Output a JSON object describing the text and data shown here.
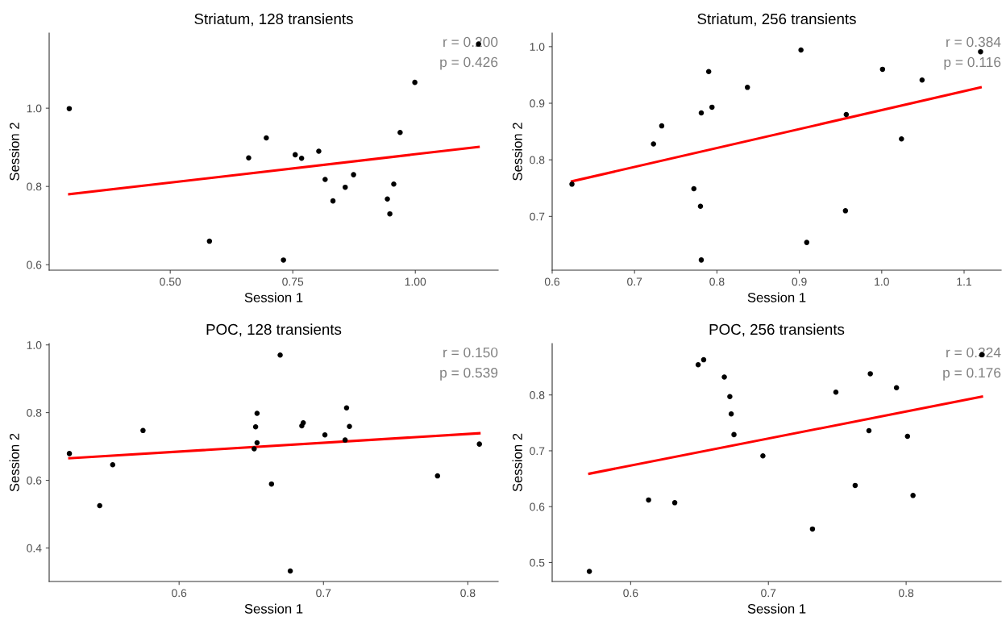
{
  "chart_data": [
    {
      "type": "scatter",
      "title": "Striatum, 128 transients",
      "xlabel": "Session 1",
      "ylabel": "Session 2",
      "grid": false,
      "xlim": [
        0.253,
        1.169
      ],
      "ylim": [
        0.586,
        1.192
      ],
      "xticks": [
        {
          "value": 0.5,
          "label": "0.50"
        },
        {
          "value": 0.75,
          "label": "0.75"
        },
        {
          "value": 1.0,
          "label": "1.00"
        }
      ],
      "yticks": [
        {
          "value": 0.6,
          "label": "0.6"
        },
        {
          "value": 0.8,
          "label": "0.8"
        },
        {
          "value": 1.0,
          "label": "1.0"
        }
      ],
      "annotations": [
        "r = 0.200",
        "p = 0.426"
      ],
      "series": [
        {
          "color": "#000000",
          "marker": "circle",
          "x": [
            0.294,
            0.58,
            0.66,
            0.696,
            0.731,
            0.755,
            0.768,
            0.803,
            0.816,
            0.832,
            0.857,
            0.874,
            0.943,
            0.948,
            0.956,
            0.969,
            0.999,
            1.129
          ],
          "values": [
            0.999,
            0.66,
            0.873,
            0.924,
            0.612,
            0.881,
            0.872,
            0.89,
            0.818,
            0.763,
            0.798,
            0.83,
            0.768,
            0.73,
            0.806,
            0.938,
            1.066,
            1.164
          ]
        },
        {
          "type": "line",
          "color": "#ff0000",
          "x": [
            0.294,
            1.129
          ],
          "values": [
            0.78,
            0.901
          ]
        }
      ]
    },
    {
      "type": "scatter",
      "title": "Striatum, 256 transients",
      "xlabel": "Session 1",
      "ylabel": "Session 2",
      "grid": false,
      "xlim": [
        0.6,
        1.145
      ],
      "ylim": [
        0.605,
        1.024
      ],
      "xticks": [
        {
          "value": 0.6,
          "label": "0.6"
        },
        {
          "value": 0.7,
          "label": "0.7"
        },
        {
          "value": 0.8,
          "label": "0.8"
        },
        {
          "value": 0.9,
          "label": "0.9"
        },
        {
          "value": 1.0,
          "label": "1.0"
        },
        {
          "value": 1.1,
          "label": "1.1"
        }
      ],
      "yticks": [
        {
          "value": 0.7,
          "label": "0.7"
        },
        {
          "value": 0.8,
          "label": "0.8"
        },
        {
          "value": 0.9,
          "label": "0.9"
        },
        {
          "value": 1.0,
          "label": "1.0"
        }
      ],
      "annotations": [
        "r = 0.384",
        "p = 0.116"
      ],
      "series": [
        {
          "color": "#000000",
          "marker": "circle",
          "x": [
            0.624,
            0.723,
            0.733,
            0.772,
            0.78,
            0.781,
            0.781,
            0.79,
            0.794,
            0.837,
            0.902,
            0.909,
            0.956,
            0.957,
            1.001,
            1.024,
            1.049,
            1.12
          ],
          "values": [
            0.757,
            0.828,
            0.86,
            0.749,
            0.718,
            0.623,
            0.883,
            0.956,
            0.893,
            0.928,
            0.994,
            0.654,
            0.71,
            0.88,
            0.96,
            0.837,
            0.941,
            0.991
          ]
        },
        {
          "type": "line",
          "color": "#ff0000",
          "x": [
            0.624,
            1.12
          ],
          "values": [
            0.762,
            0.928
          ]
        }
      ]
    },
    {
      "type": "scatter",
      "title": "POC, 128 transients",
      "xlabel": "Session 1",
      "ylabel": "Session 2",
      "grid": false,
      "xlim": [
        0.51,
        0.821
      ],
      "ylim": [
        0.301,
        1.004
      ],
      "xticks": [
        {
          "value": 0.6,
          "label": "0.6"
        },
        {
          "value": 0.7,
          "label": "0.7"
        },
        {
          "value": 0.8,
          "label": "0.8"
        }
      ],
      "yticks": [
        {
          "value": 0.4,
          "label": "0.4"
        },
        {
          "value": 0.6,
          "label": "0.6"
        },
        {
          "value": 0.8,
          "label": "0.8"
        },
        {
          "value": 1.0,
          "label": "1.0"
        }
      ],
      "annotations": [
        "r = 0.150",
        "p = 0.539"
      ],
      "series": [
        {
          "color": "#000000",
          "marker": "circle",
          "x": [
            0.524,
            0.545,
            0.554,
            0.575,
            0.652,
            0.653,
            0.654,
            0.654,
            0.664,
            0.67,
            0.677,
            0.685,
            0.686,
            0.701,
            0.715,
            0.716,
            0.718,
            0.779,
            0.808
          ],
          "values": [
            0.679,
            0.525,
            0.646,
            0.747,
            0.693,
            0.758,
            0.798,
            0.711,
            0.589,
            0.97,
            0.332,
            0.761,
            0.77,
            0.734,
            0.719,
            0.814,
            0.759,
            0.613,
            0.707
          ]
        },
        {
          "type": "line",
          "color": "#ff0000",
          "x": [
            0.524,
            0.808
          ],
          "values": [
            0.665,
            0.739
          ]
        }
      ]
    },
    {
      "type": "scatter",
      "title": "POC, 256 transients",
      "xlabel": "Session 1",
      "ylabel": "Session 2",
      "grid": false,
      "xlim": [
        0.543,
        0.869
      ],
      "ylim": [
        0.466,
        0.892
      ],
      "xticks": [
        {
          "value": 0.6,
          "label": "0.6"
        },
        {
          "value": 0.7,
          "label": "0.7"
        },
        {
          "value": 0.8,
          "label": "0.8"
        }
      ],
      "yticks": [
        {
          "value": 0.5,
          "label": "0.5"
        },
        {
          "value": 0.6,
          "label": "0.6"
        },
        {
          "value": 0.7,
          "label": "0.7"
        },
        {
          "value": 0.8,
          "label": "0.8"
        }
      ],
      "annotations": [
        "r = 0.324",
        "p = 0.176"
      ],
      "series": [
        {
          "color": "#000000",
          "marker": "circle",
          "x": [
            0.57,
            0.613,
            0.632,
            0.649,
            0.653,
            0.668,
            0.672,
            0.673,
            0.675,
            0.696,
            0.732,
            0.749,
            0.763,
            0.773,
            0.774,
            0.793,
            0.801,
            0.805,
            0.855
          ],
          "values": [
            0.484,
            0.612,
            0.607,
            0.854,
            0.863,
            0.832,
            0.797,
            0.766,
            0.729,
            0.691,
            0.56,
            0.805,
            0.638,
            0.736,
            0.838,
            0.813,
            0.726,
            0.62,
            0.872
          ]
        },
        {
          "type": "line",
          "color": "#ff0000",
          "x": [
            0.57,
            0.855
          ],
          "values": [
            0.659,
            0.797
          ]
        }
      ]
    }
  ]
}
